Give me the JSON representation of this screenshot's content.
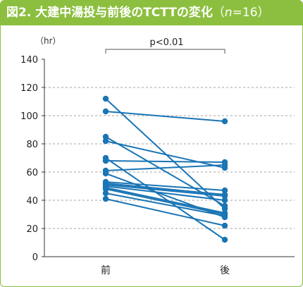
{
  "figure": {
    "title_main": "図2. 大建中湯投与前後のTCTTの変化",
    "title_paren_open": "（",
    "title_n_var": "n",
    "title_n_rest": "=16）"
  },
  "colors": {
    "header_bg": "#8cbf3f",
    "series": "#1a75b5",
    "grid": "#888888",
    "axis": "#333333"
  },
  "chart_data": {
    "type": "line",
    "ylabel": "（hr）",
    "ylim": [
      0,
      140
    ],
    "yticks": [
      0,
      20,
      40,
      60,
      80,
      100,
      120,
      140
    ],
    "ygrid_dashed": [
      20,
      40,
      60,
      80,
      100,
      120
    ],
    "categories": [
      "前",
      "後"
    ],
    "annotation": "p<0.01",
    "pairs": [
      [
        112,
        34
      ],
      [
        103,
        96
      ],
      [
        85,
        36
      ],
      [
        82,
        63
      ],
      [
        70,
        12
      ],
      [
        68,
        67
      ],
      [
        61,
        65
      ],
      [
        59,
        28
      ],
      [
        53,
        47
      ],
      [
        52,
        44
      ],
      [
        51,
        43
      ],
      [
        50,
        40
      ],
      [
        49,
        31
      ],
      [
        48,
        30
      ],
      [
        45,
        29
      ],
      [
        41,
        22
      ]
    ]
  }
}
